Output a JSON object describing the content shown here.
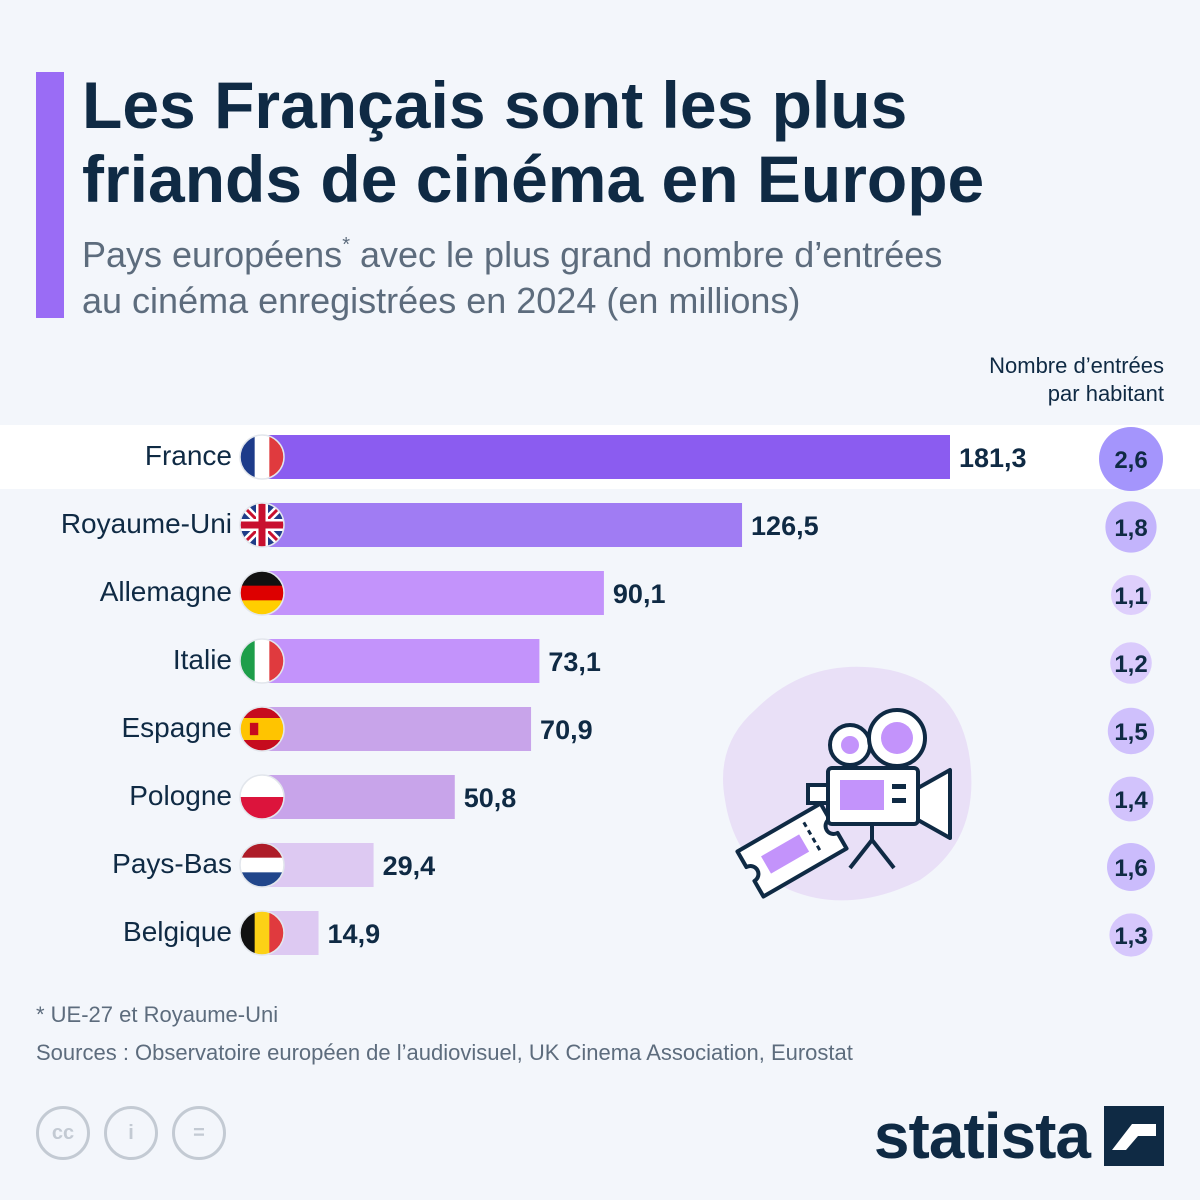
{
  "header": {
    "title_line1": "Les Français sont les plus",
    "title_line2": "friands de cinéma en Europe",
    "subtitle_line1_a": "Pays européens",
    "subtitle_line1_sup": "*",
    "subtitle_line1_b": " avec le plus grand nombre d’entrées",
    "subtitle_line2": "au cinéma enregistrées en 2024 (en millions)"
  },
  "column_header": {
    "line1": "Nombre d’entrées",
    "line2": "par habitant"
  },
  "colors": {
    "accent": "#9a6cf5",
    "bars": [
      "#8b5cf0",
      "#a07cf3",
      "#c393fb",
      "#c393fb",
      "#c8a4ea",
      "#c8a4ea",
      "#ddc9f2",
      "#ddc9f2"
    ],
    "text_dark": "#0f2a44"
  },
  "chart_data": {
    "type": "bar",
    "orientation": "horizontal",
    "title": "Les Français sont les plus friands de cinéma en Europe",
    "categories": [
      "France",
      "Royaume-Uni",
      "Allemagne",
      "Italie",
      "Espagne",
      "Pologne",
      "Pays-Bas",
      "Belgique"
    ],
    "flags": [
      "france-flag",
      "uk-flag",
      "germany-flag",
      "italy-flag",
      "spain-flag",
      "poland-flag",
      "netherlands-flag",
      "belgium-flag"
    ],
    "series": [
      {
        "name": "Entrées au cinéma 2024 (en millions)",
        "values": [
          181.3,
          126.5,
          90.1,
          73.1,
          70.9,
          50.8,
          29.4,
          14.9
        ],
        "labels": [
          "181,3",
          "126,5",
          "90,1",
          "73,1",
          "70,9",
          "50,8",
          "29,4",
          "14,9"
        ]
      },
      {
        "name": "Nombre d’entrées par habitant",
        "values": [
          2.6,
          1.8,
          1.1,
          1.2,
          1.5,
          1.4,
          1.6,
          1.3
        ],
        "labels": [
          "2,6",
          "1,8",
          "1,1",
          "1,2",
          "1,5",
          "1,4",
          "1,6",
          "1,3"
        ]
      }
    ],
    "xlim": [
      0,
      181.3
    ],
    "highlight": "France",
    "grid": false
  },
  "footer": {
    "footnote": "* UE-27 et Royaume-Uni",
    "sources": "Sources : Observatoire européen de l’audiovisuel, UK Cinema Association, Eurostat",
    "cc_labels": [
      "cc",
      "i",
      "="
    ],
    "brand": "statista"
  }
}
